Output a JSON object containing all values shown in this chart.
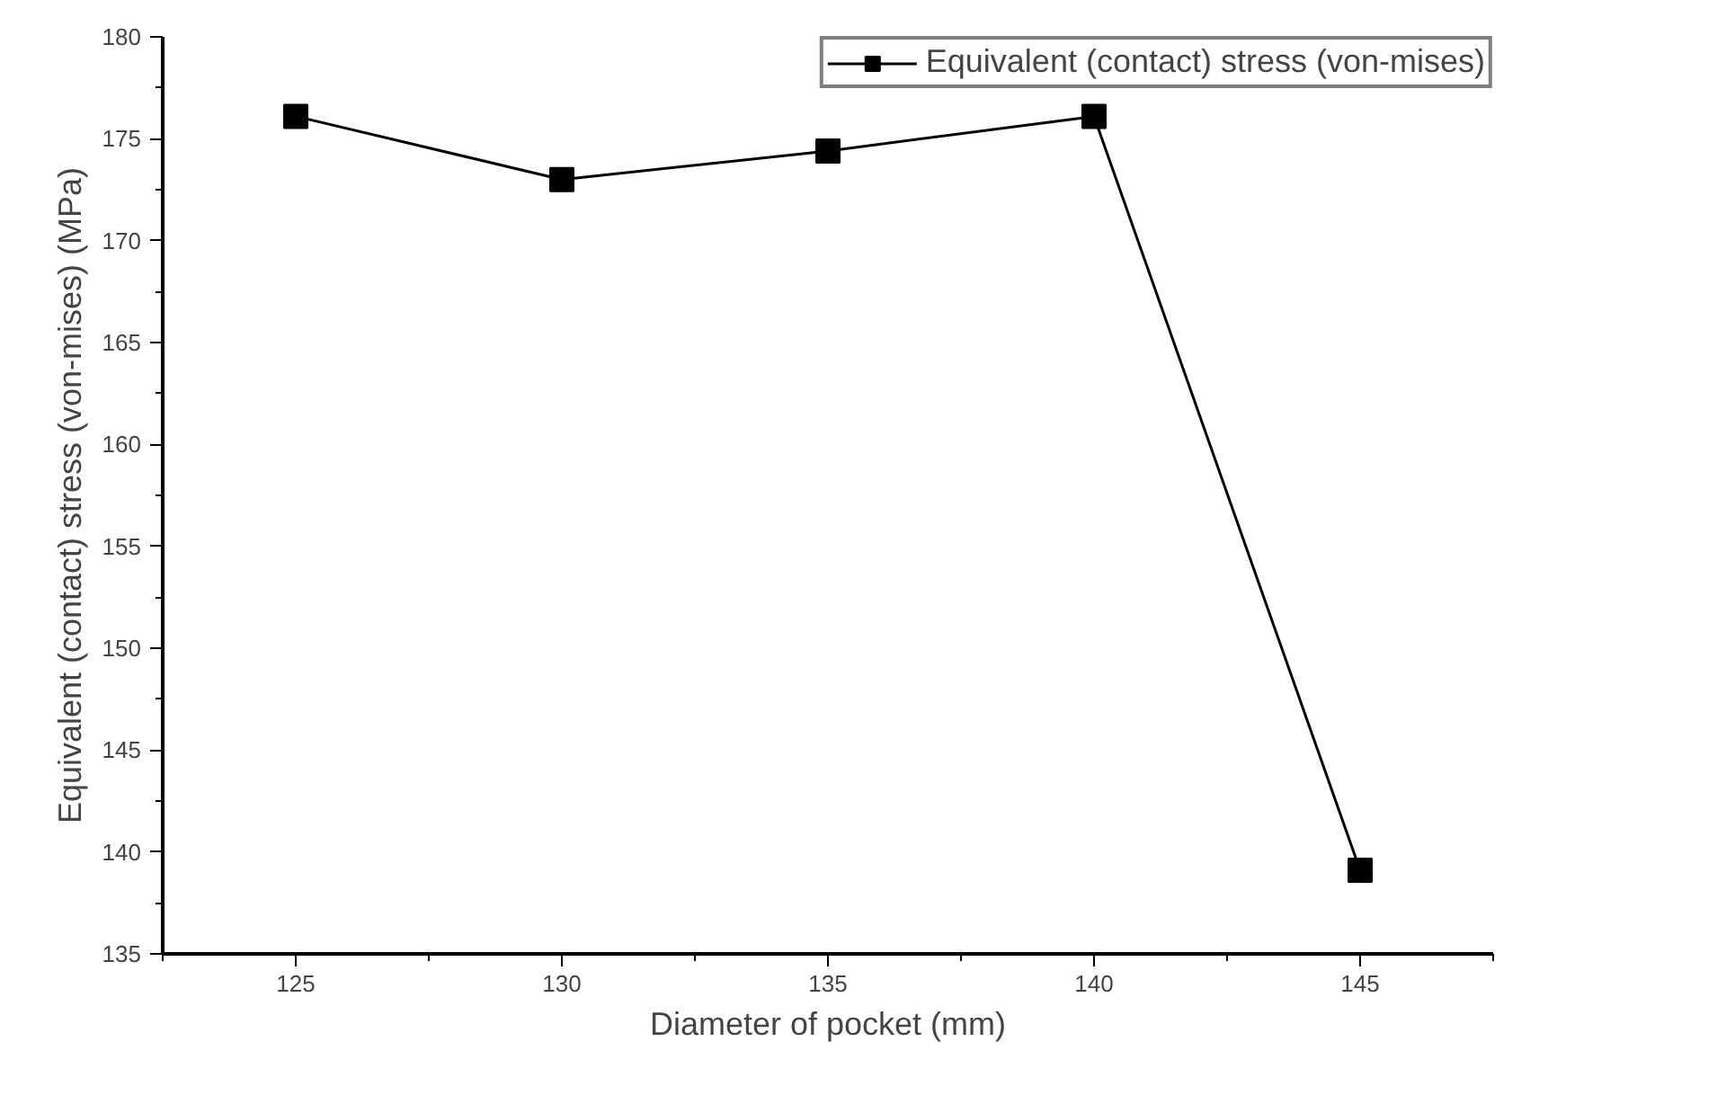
{
  "chart_data": {
    "type": "line",
    "xlabel": "Diameter of pocket (mm)",
    "ylabel": "Equivalent (contact) stress (von-mises) (MPa)",
    "x": [
      125,
      130,
      135,
      140,
      145
    ],
    "series": [
      {
        "name": "Equivalent (contact) stress (von-mises)",
        "color": "#000000",
        "values": [
          176.1,
          173.0,
          174.4,
          176.1,
          139.1
        ]
      }
    ],
    "xlim": [
      122.5,
      147.5
    ],
    "ylim": [
      135,
      180
    ],
    "xticks": [
      125,
      130,
      135,
      140,
      145
    ],
    "yticks": [
      135,
      140,
      145,
      150,
      155,
      160,
      165,
      170,
      175,
      180
    ],
    "marker": "square",
    "line_style": "solid",
    "legend": "top right",
    "grid": false
  }
}
